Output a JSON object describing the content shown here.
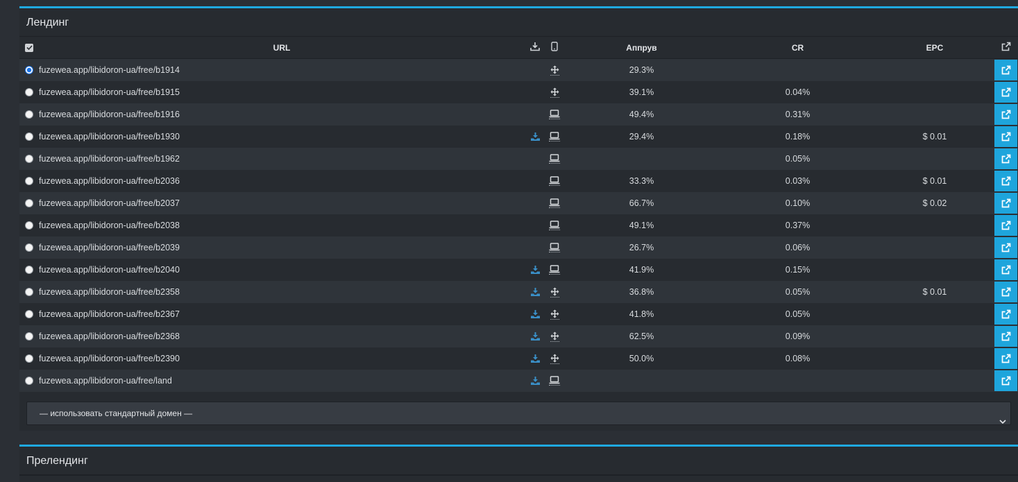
{
  "landing": {
    "title": "Лендинг",
    "columns": {
      "url": "URL",
      "approve": "Аппрув",
      "cr": "CR",
      "epc": "EPC"
    },
    "rows": [
      {
        "url": "fuzewea.app/libidoron-ua/free/b1914",
        "download": false,
        "device": "move",
        "approve": "29.3%",
        "cr": "",
        "epc": "",
        "selected": true
      },
      {
        "url": "fuzewea.app/libidoron-ua/free/b1915",
        "download": false,
        "device": "move",
        "approve": "39.1%",
        "cr": "0.04%",
        "epc": ""
      },
      {
        "url": "fuzewea.app/libidoron-ua/free/b1916",
        "download": false,
        "device": "laptop",
        "approve": "49.4%",
        "cr": "0.31%",
        "epc": ""
      },
      {
        "url": "fuzewea.app/libidoron-ua/free/b1930",
        "download": true,
        "device": "laptop",
        "approve": "29.4%",
        "cr": "0.18%",
        "epc": "$ 0.01"
      },
      {
        "url": "fuzewea.app/libidoron-ua/free/b1962",
        "download": false,
        "device": "laptop",
        "approve": "",
        "cr": "0.05%",
        "epc": ""
      },
      {
        "url": "fuzewea.app/libidoron-ua/free/b2036",
        "download": false,
        "device": "laptop",
        "approve": "33.3%",
        "cr": "0.03%",
        "epc": "$ 0.01"
      },
      {
        "url": "fuzewea.app/libidoron-ua/free/b2037",
        "download": false,
        "device": "laptop",
        "approve": "66.7%",
        "cr": "0.10%",
        "epc": "$ 0.02"
      },
      {
        "url": "fuzewea.app/libidoron-ua/free/b2038",
        "download": false,
        "device": "laptop",
        "approve": "49.1%",
        "cr": "0.37%",
        "epc": ""
      },
      {
        "url": "fuzewea.app/libidoron-ua/free/b2039",
        "download": false,
        "device": "laptop",
        "approve": "26.7%",
        "cr": "0.06%",
        "epc": ""
      },
      {
        "url": "fuzewea.app/libidoron-ua/free/b2040",
        "download": true,
        "device": "laptop",
        "approve": "41.9%",
        "cr": "0.15%",
        "epc": ""
      },
      {
        "url": "fuzewea.app/libidoron-ua/free/b2358",
        "download": true,
        "device": "move",
        "approve": "36.8%",
        "cr": "0.05%",
        "epc": "$ 0.01"
      },
      {
        "url": "fuzewea.app/libidoron-ua/free/b2367",
        "download": true,
        "device": "move",
        "approve": "41.8%",
        "cr": "0.05%",
        "epc": ""
      },
      {
        "url": "fuzewea.app/libidoron-ua/free/b2368",
        "download": true,
        "device": "move",
        "approve": "62.5%",
        "cr": "0.09%",
        "epc": ""
      },
      {
        "url": "fuzewea.app/libidoron-ua/free/b2390",
        "download": true,
        "device": "move",
        "approve": "50.0%",
        "cr": "0.08%",
        "epc": ""
      },
      {
        "url": "fuzewea.app/libidoron-ua/free/land",
        "download": true,
        "device": "laptop",
        "approve": "",
        "cr": "",
        "epc": ""
      }
    ],
    "domain_select": {
      "value": "— использовать стандартный домен —"
    }
  },
  "prelanding": {
    "title": "Прелендинг"
  },
  "colors": {
    "accent": "#1fa9e0",
    "open_button": "#1ea5dc",
    "download_icon": "#3a8fc7"
  }
}
